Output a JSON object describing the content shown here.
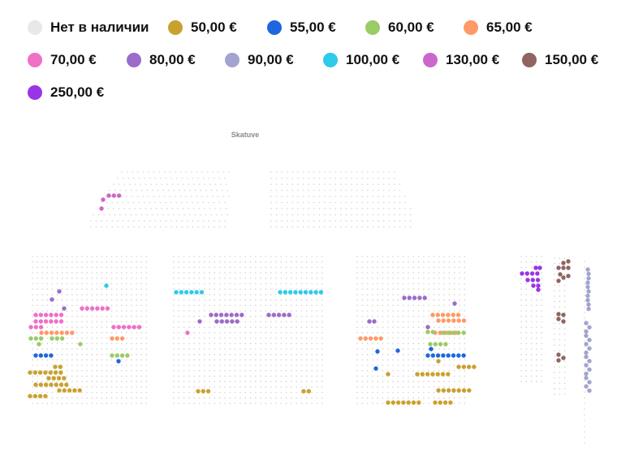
{
  "legend": {
    "items": [
      {
        "label": "Нет в наличии",
        "color": "#e8e8e8"
      },
      {
        "label": "50,00 €",
        "color": "#c9a12f"
      },
      {
        "label": "55,00 €",
        "color": "#1e66e0"
      },
      {
        "label": "60,00 €",
        "color": "#99cc66"
      },
      {
        "label": "65,00 €",
        "color": "#ff9966"
      },
      {
        "label": "70,00 €",
        "color": "#f06fc7"
      },
      {
        "label": "80,00 €",
        "color": "#9b6cc9"
      },
      {
        "label": "90,00 €",
        "color": "#a3a3cf"
      },
      {
        "label": "100,00 €",
        "color": "#2ccbea"
      },
      {
        "label": "130,00 €",
        "color": "#cc66cc"
      },
      {
        "label": "150,00 €",
        "color": "#8f6461"
      },
      {
        "label": "250,00 €",
        "color": "#9a34e6"
      }
    ]
  },
  "seatmap": {
    "stage_label": "Skatuve"
  }
}
